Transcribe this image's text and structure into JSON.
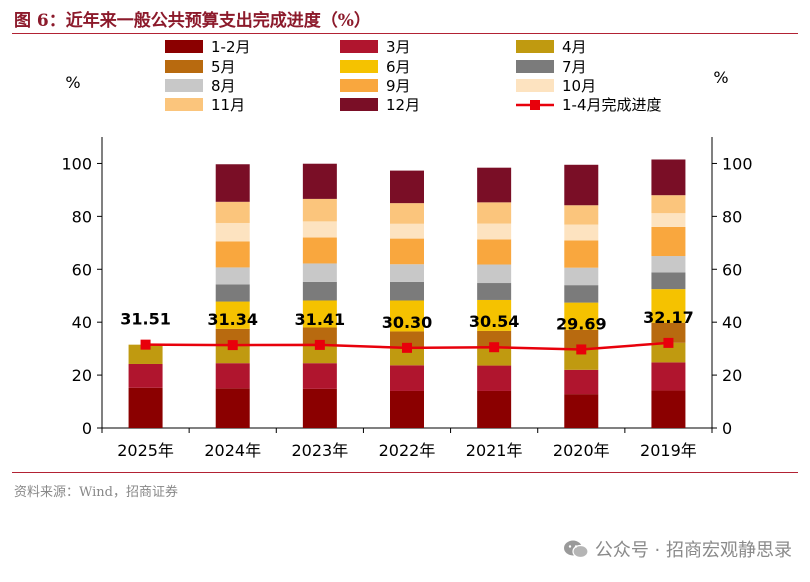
{
  "figure": {
    "title": "图 6：近年来一般公共预算支出完成进度（%）",
    "source": "资料来源：Wind，招商证券",
    "watermark": "公众号 · 招商宏观静思录"
  },
  "chart_data": {
    "type": "bar",
    "stacked": true,
    "categories": [
      "2025年",
      "2024年",
      "2023年",
      "2022年",
      "2021年",
      "2020年",
      "2019年"
    ],
    "ylim": [
      0,
      110
    ],
    "yticks": [
      0,
      20,
      40,
      60,
      80,
      100
    ],
    "y2ticks": [
      0,
      20,
      40,
      60,
      80,
      100
    ],
    "ylabel": "%",
    "y2label": "%",
    "legend_position": "top",
    "series": [
      {
        "name": "1-2月",
        "color": "#8b0000",
        "values": [
          15.2,
          15.0,
          14.8,
          14.0,
          14.0,
          12.8,
          14.2
        ]
      },
      {
        "name": "3月",
        "color": "#b0152e",
        "values": [
          9.0,
          9.5,
          9.7,
          9.7,
          9.6,
          9.2,
          10.6
        ]
      },
      {
        "name": "4月",
        "color": "#c09a10",
        "values": [
          7.3,
          6.8,
          6.9,
          6.6,
          6.9,
          7.7,
          7.4
        ]
      },
      {
        "name": "5月",
        "color": "#b86a0f",
        "values": [
          null,
          6.2,
          6.6,
          6.2,
          6.2,
          7.4,
          7.6
        ]
      },
      {
        "name": "6月",
        "color": "#f5c200",
        "values": [
          null,
          10.3,
          10.2,
          11.7,
          11.7,
          10.3,
          12.7
        ]
      },
      {
        "name": "7月",
        "color": "#7b7b7b",
        "values": [
          null,
          6.5,
          7.0,
          7.0,
          6.4,
          6.6,
          6.3
        ]
      },
      {
        "name": "8月",
        "color": "#c8c8c8",
        "values": [
          null,
          6.4,
          7.0,
          6.7,
          7.0,
          6.6,
          6.2
        ]
      },
      {
        "name": "9月",
        "color": "#f9a73e",
        "values": [
          null,
          9.8,
          9.8,
          9.7,
          9.5,
          10.3,
          11.0
        ]
      },
      {
        "name": "10月",
        "color": "#fde3c0",
        "values": [
          null,
          7.0,
          6.1,
          5.6,
          6.0,
          6.0,
          5.2
        ]
      },
      {
        "name": "11月",
        "color": "#fbc57c",
        "values": [
          null,
          8.0,
          8.5,
          7.8,
          8.0,
          7.3,
          6.8
        ]
      },
      {
        "name": "12月",
        "color": "#7a0e26",
        "values": [
          null,
          14.2,
          13.3,
          12.3,
          13.1,
          15.3,
          13.5
        ]
      }
    ],
    "line": {
      "name": "1-4月完成进度",
      "color": "#e8000b",
      "values": [
        31.51,
        31.34,
        31.41,
        30.3,
        30.54,
        29.69,
        32.17
      ],
      "labels": [
        "31.51",
        "31.34",
        "31.41",
        "30.30",
        "30.54",
        "29.69",
        "32.17"
      ]
    }
  }
}
